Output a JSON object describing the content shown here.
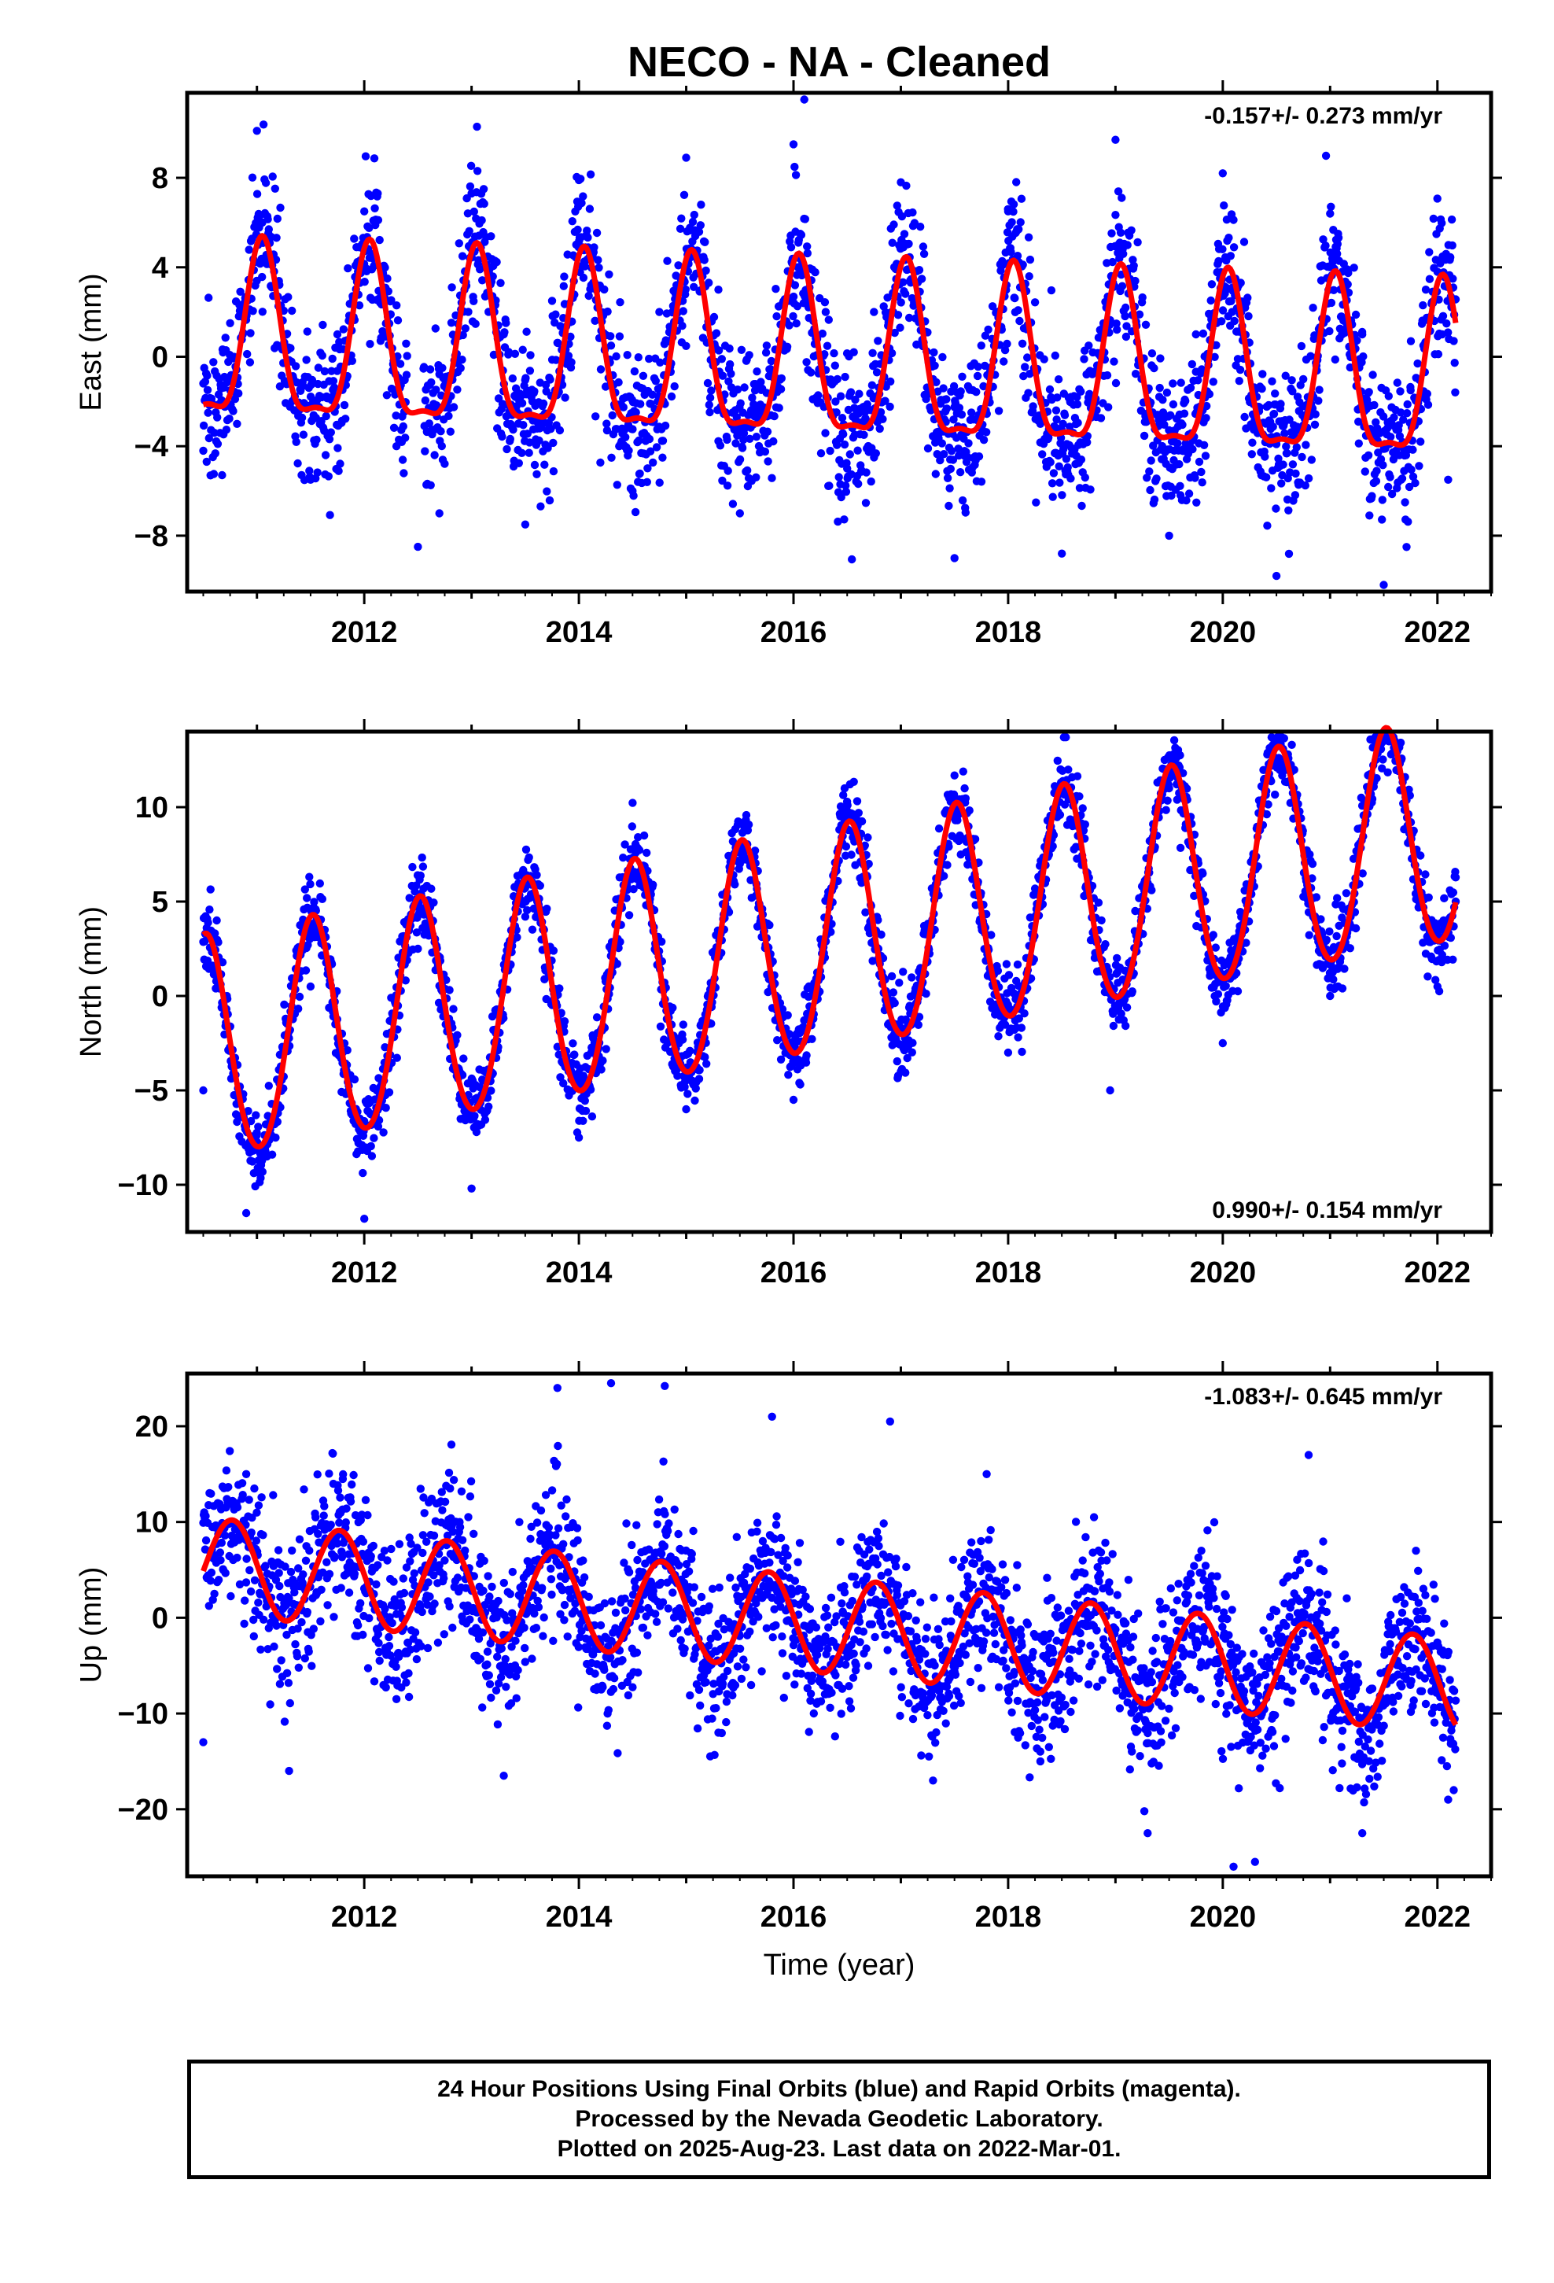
{
  "figure": {
    "title": "NECO  - NA - Cleaned",
    "xlabel": "Time (year)"
  },
  "footer": {
    "line1": "24 Hour Positions Using Final Orbits (blue) and Rapid Orbits (magenta).",
    "line2": "Processed by the Nevada Geodetic Laboratory.",
    "line3": "Plotted on 2025-Aug-23. Last data on 2022-Mar-01."
  },
  "colors": {
    "final_orbits": "#0000ff",
    "model_fit": "#ff0000"
  },
  "chart_data": [
    {
      "type": "scatter",
      "component": "east",
      "ylabel": "East (mm)",
      "rate_text": "-0.157+/- 0.273 mm/yr",
      "rate_position": "top-right",
      "xlim": [
        2010.35,
        2022.5
      ],
      "ylim": [
        -10.5,
        11.8
      ],
      "xticks": [
        2012,
        2014,
        2016,
        2018,
        2020,
        2022
      ],
      "yticks": [
        -8,
        -4,
        0,
        4,
        8
      ],
      "model": {
        "trend_mm_per_yr": -0.157,
        "annual_amp": 3.8,
        "semiannual_amp": 1.2,
        "phase_peak_yr_frac": 0.05,
        "offset": 0.5
      },
      "scatter_sigma": 1.7,
      "x_range": [
        2010.5,
        2022.17
      ],
      "series": [
        {
          "name": "24 Hour Positions (Final Orbits)",
          "x": [
            2010.5,
            2010.75,
            2011.0,
            2011.05,
            2011.25,
            2011.5,
            2011.75,
            2012.0,
            2012.1,
            2012.3,
            2012.5,
            2012.7,
            2012.75,
            2013.0,
            2013.3,
            2013.5,
            2013.75,
            2014.0,
            2014.3,
            2014.5,
            2014.75,
            2015.0,
            2015.3,
            2015.5,
            2015.75,
            2016.0,
            2016.1,
            2016.3,
            2016.5,
            2016.75,
            2017.0,
            2017.3,
            2017.5,
            2017.75,
            2018.0,
            2018.3,
            2018.5,
            2018.75,
            2019.0,
            2019.3,
            2019.5,
            2019.75,
            2020.0,
            2020.1,
            2020.3,
            2020.5,
            2020.75,
            2021.0,
            2021.3,
            2021.5,
            2021.75,
            2022.0,
            2022.1
          ],
          "y": [
            -4.2,
            1.5,
            10.1,
            6.0,
            0.5,
            -5.5,
            1.0,
            6.5,
            4.5,
            -4.0,
            -8.5,
            -7.0,
            -1.0,
            7.3,
            1.0,
            -7.5,
            2.5,
            7.9,
            0.5,
            -6.0,
            2.0,
            8.9,
            3.0,
            -7.0,
            0.5,
            9.5,
            11.5,
            2.0,
            -5.0,
            2.0,
            7.8,
            -1.0,
            -9.0,
            0.5,
            6.5,
            -3.0,
            -8.8,
            0.5,
            9.7,
            -1.5,
            -8.0,
            1.0,
            8.2,
            3.0,
            -3.0,
            -9.8,
            -1.0,
            6.4,
            1.0,
            -10.2,
            -1.5,
            3.8,
            -5.5
          ]
        }
      ],
      "fit": {
        "name": "model",
        "x": [
          2010.5,
          2010.75,
          2011.05,
          2011.5,
          2011.75,
          2012.05,
          2012.5,
          2012.75,
          2013.05,
          2013.5,
          2013.75,
          2014.05,
          2014.5,
          2014.75,
          2015.05,
          2015.5,
          2015.75,
          2016.05,
          2016.5,
          2016.75,
          2017.05,
          2017.5,
          2017.75,
          2018.05,
          2018.5,
          2018.75,
          2019.05,
          2019.5,
          2019.75,
          2020.05,
          2020.5,
          2020.75,
          2021.05,
          2021.5,
          2021.75,
          2022.05,
          2022.17
        ],
        "y": [
          -2.8,
          0.5,
          4.9,
          -3.6,
          0.8,
          4.7,
          -3.8,
          0.3,
          4.6,
          -3.9,
          0.1,
          4.4,
          -4.1,
          -0.1,
          4.2,
          -4.2,
          -0.3,
          4.1,
          -4.3,
          -0.5,
          3.9,
          -4.5,
          -0.7,
          3.8,
          -4.6,
          -0.8,
          3.6,
          -4.7,
          -1.0,
          3.5,
          -4.9,
          -1.2,
          3.3,
          -5.0,
          -1.4,
          3.2,
          1.1
        ]
      }
    },
    {
      "type": "scatter",
      "component": "north",
      "ylabel": "North (mm)",
      "rate_text": "0.990+/- 0.154 mm/yr",
      "rate_position": "bottom-right",
      "xlim": [
        2010.35,
        2022.5
      ],
      "ylim": [
        -12.5,
        14
      ],
      "xticks": [
        2012,
        2014,
        2016,
        2018,
        2020,
        2022
      ],
      "yticks": [
        -10,
        -5,
        0,
        5,
        10
      ],
      "model": {
        "trend_mm_per_yr": 0.99,
        "annual_amp": 5.9,
        "semiannual_amp": 0.4,
        "phase_peak_yr_frac": 0.52,
        "offset": -3.0
      },
      "scatter_sigma": 1.0,
      "x_range": [
        2010.5,
        2022.17
      ],
      "series": [
        {
          "name": "24 Hour Positions (Final Orbits)",
          "x": [
            2010.5,
            2010.9,
            2011.5,
            2012.0,
            2012.5,
            2013.0,
            2013.5,
            2014.0,
            2014.5,
            2015.0,
            2015.5,
            2016.0,
            2016.5,
            2017.0,
            2017.5,
            2018.0,
            2018.5,
            2018.95,
            2019.5,
            2020.0,
            2020.5,
            2021.0,
            2021.5,
            2022.0,
            2022.17
          ],
          "y": [
            -5.0,
            -11.5,
            0.5,
            -11.8,
            2.5,
            -10.2,
            4.2,
            -7.5,
            6.5,
            -6.0,
            7.0,
            -5.5,
            9.8,
            -4.0,
            9.5,
            -3.0,
            11.2,
            -5.0,
            11.0,
            -2.5,
            13.2,
            0.0,
            13.5,
            0.5,
            5.0
          ]
        }
      ],
      "fit": {
        "name": "model",
        "x": [
          2010.5,
          2010.55,
          2010.95,
          2011.5,
          2011.95,
          2012.5,
          2012.95,
          2013.5,
          2013.95,
          2014.5,
          2014.95,
          2015.5,
          2015.95,
          2016.5,
          2016.95,
          2017.5,
          2017.95,
          2018.5,
          2018.95,
          2019.5,
          2019.95,
          2020.5,
          2020.95,
          2021.5,
          2021.95,
          2022.17
        ],
        "y": [
          -0.5,
          -0.5,
          -9.2,
          0.6,
          -8.2,
          1.7,
          -7.2,
          2.6,
          -6.2,
          3.6,
          -5.2,
          4.6,
          -4.2,
          5.6,
          -3.2,
          6.6,
          -2.2,
          7.6,
          -1.2,
          8.6,
          -0.2,
          9.6,
          0.8,
          10.6,
          1.8,
          3.5
        ]
      }
    },
    {
      "type": "scatter",
      "component": "up",
      "ylabel": "Up (mm)",
      "rate_text": "-1.083+/- 0.645 mm/yr",
      "rate_position": "top-right",
      "xlim": [
        2010.35,
        2022.5
      ],
      "ylim": [
        -27,
        25.5
      ],
      "xticks": [
        2012,
        2014,
        2016,
        2018,
        2020,
        2022
      ],
      "yticks": [
        -20,
        -10,
        0,
        10,
        20
      ],
      "model": {
        "trend_mm_per_yr": -1.083,
        "annual_amp": 5.0,
        "semiannual_amp": 0.0,
        "phase_peak_yr_frac": 0.77,
        "offset": 5.5
      },
      "scatter_sigma": 4.0,
      "x_range": [
        2010.5,
        2022.17
      ],
      "series": [
        {
          "name": "24 Hour Positions (Final Orbits)",
          "x": [
            2010.5,
            2010.9,
            2011.3,
            2011.8,
            2012.3,
            2012.8,
            2013.3,
            2013.8,
            2014.3,
            2014.8,
            2015.3,
            2015.8,
            2016.3,
            2016.9,
            2017.3,
            2017.8,
            2018.3,
            2018.8,
            2019.3,
            2019.8,
            2020.1,
            2020.3,
            2020.8,
            2021.3,
            2021.8,
            2022.1
          ],
          "y": [
            -13.0,
            15.0,
            -16.0,
            14.5,
            -8.5,
            13.5,
            -16.5,
            24.0,
            24.5,
            24.2,
            -12.0,
            21.0,
            -8.0,
            20.5,
            -17.0,
            15.0,
            -15.0,
            10.5,
            -22.5,
            7.0,
            -26.0,
            -25.5,
            17.0,
            -22.5,
            7.0,
            -19.0
          ]
        }
      ],
      "fit": {
        "name": "model",
        "x": [
          2010.5,
          2010.77,
          2011.27,
          2011.77,
          2012.27,
          2012.77,
          2013.27,
          2013.77,
          2014.27,
          2014.77,
          2015.27,
          2015.77,
          2016.27,
          2016.77,
          2017.27,
          2017.77,
          2018.27,
          2018.77,
          2019.27,
          2019.77,
          2020.27,
          2020.77,
          2021.27,
          2021.77,
          2022.17
        ],
        "y": [
          3.0,
          10.5,
          0.5,
          9.5,
          -0.5,
          8.4,
          -1.6,
          7.3,
          -2.7,
          6.2,
          -3.8,
          5.1,
          -4.9,
          4.0,
          -6.0,
          2.9,
          -7.1,
          1.8,
          -8.2,
          0.7,
          -9.3,
          -0.4,
          -10.4,
          -1.5,
          -8.5
        ]
      }
    }
  ]
}
